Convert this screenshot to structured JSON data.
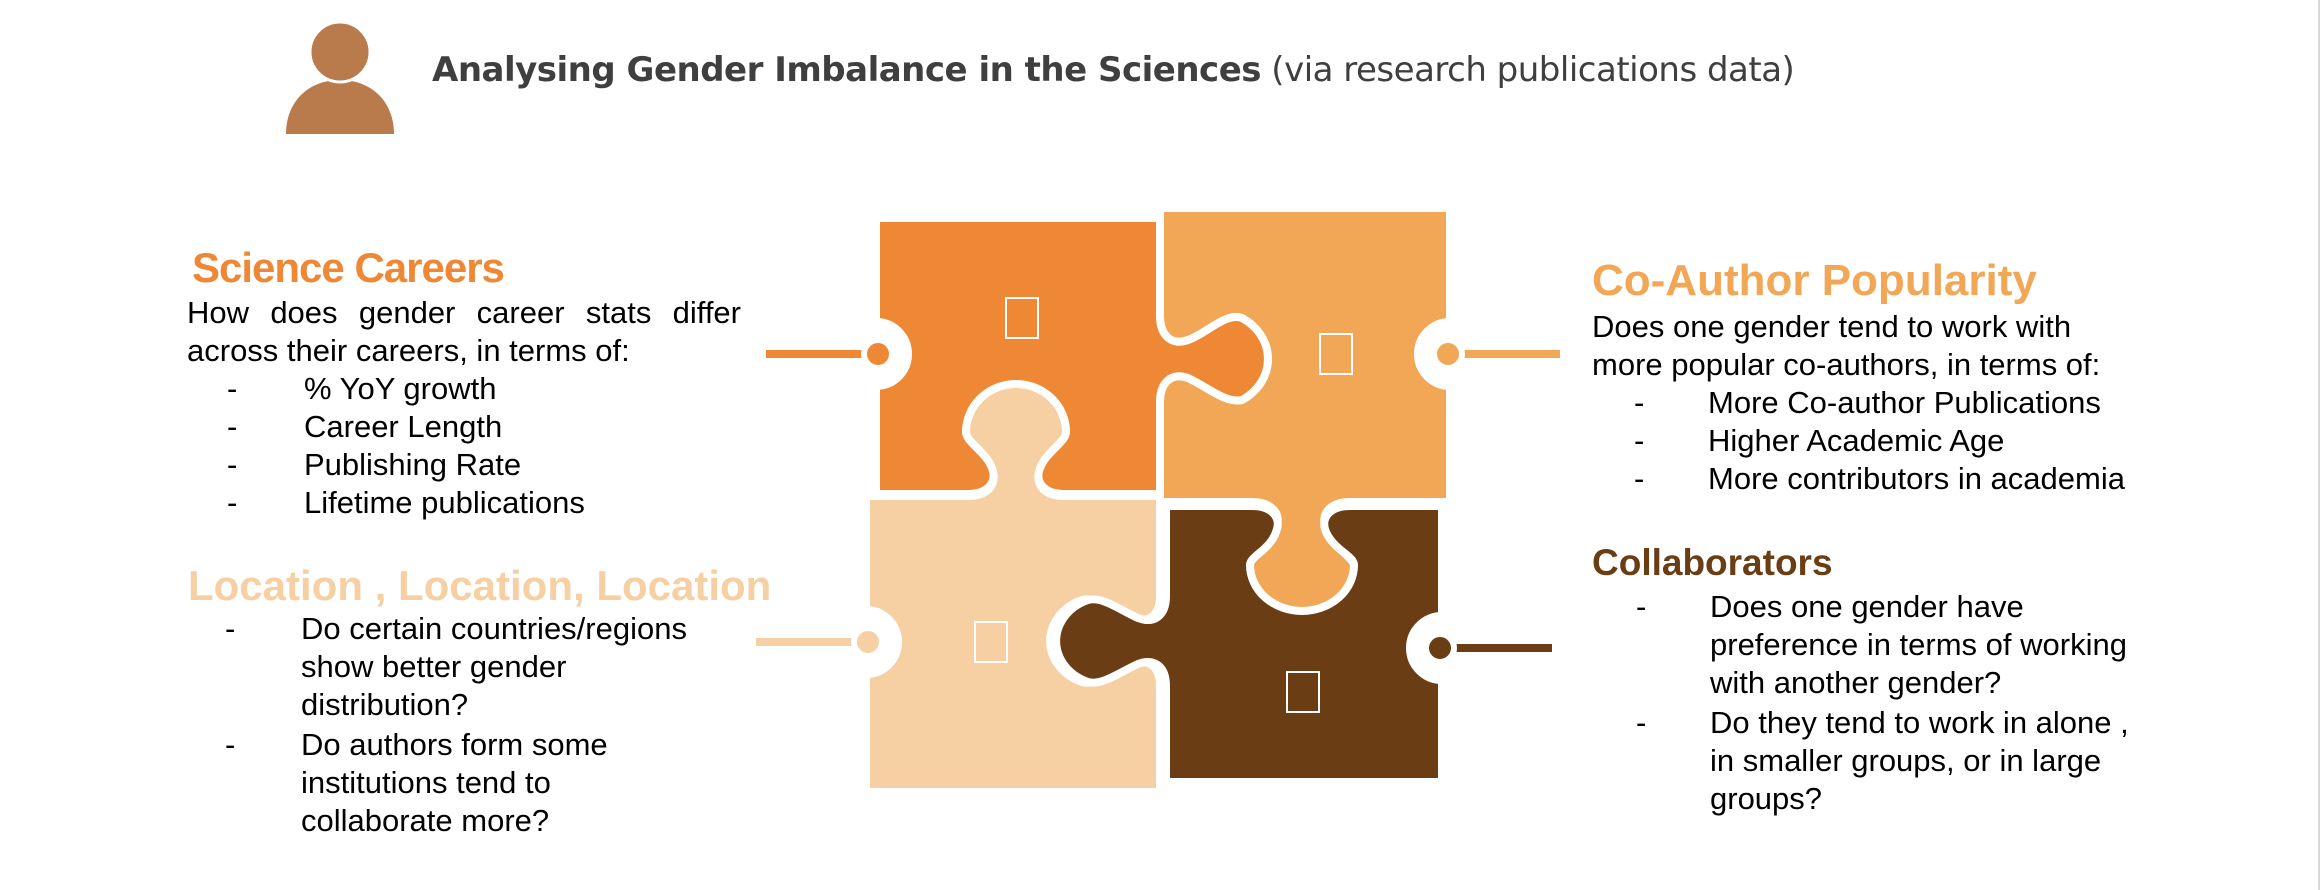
{
  "header": {
    "title_bold": "Analysing Gender Imbalance in the Sciences",
    "title_rest": " (via research publications data)",
    "icon": "person-icon"
  },
  "colors": {
    "orange_dark": "#ee8834",
    "orange_mid": "#f1a755",
    "peach": "#f6cfa3",
    "brown": "#6b3d14",
    "title_grey": "#3f3f3f"
  },
  "sections": {
    "science_careers": {
      "heading": "Science Careers",
      "intro": "How does gender career stats differ across their careers, in terms of:",
      "items": [
        "% YoY growth",
        "Career Length",
        "Publishing Rate",
        "Lifetime publications"
      ]
    },
    "location": {
      "heading": "Location , Location, Location",
      "items": [
        "Do certain countries/regions show better gender distribution?",
        "Do authors form some institutions tend to collaborate more?"
      ]
    },
    "coauthor": {
      "heading": "Co-Author Popularity",
      "intro": "Does one gender tend to work with more popular co-authors, in terms of:",
      "items": [
        "More Co-author Publications",
        "Higher Academic Age",
        "More contributors in academia"
      ]
    },
    "collaborators": {
      "heading": "Collaborators",
      "items": [
        "Does one gender have preference in terms of working with another gender?",
        "Do they tend to work in alone , in smaller groups, or in large groups?"
      ]
    }
  },
  "bullet_mark": "-"
}
